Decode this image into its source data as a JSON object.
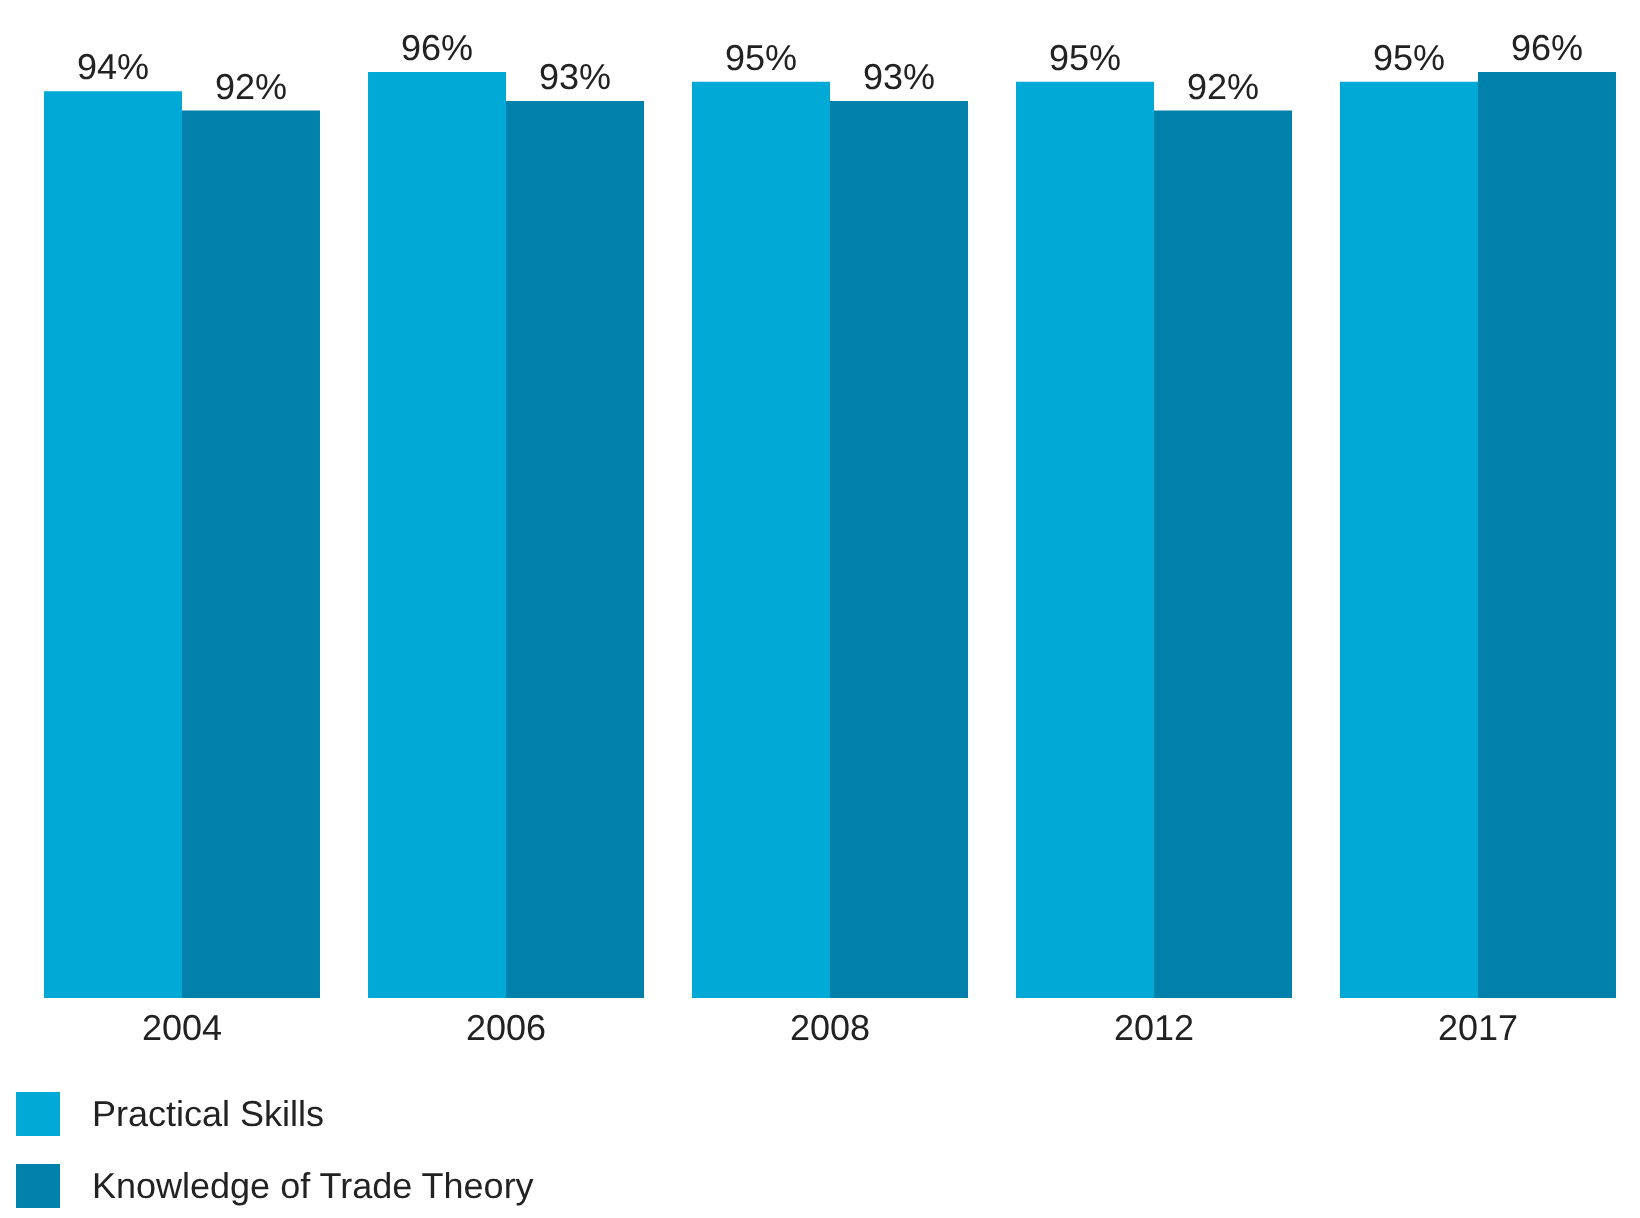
{
  "chart_data": {
    "type": "bar",
    "categories": [
      "2004",
      "2006",
      "2008",
      "2012",
      "2017"
    ],
    "series": [
      {
        "name": "Practical Skills",
        "color": "#00a9d6",
        "values": [
          94,
          96,
          95,
          95,
          95
        ],
        "value_labels": [
          "94%",
          "96%",
          "95%",
          "95%",
          "95%"
        ]
      },
      {
        "name": "Knowledge of Trade Theory",
        "color": "#0081ab",
        "values": [
          92,
          93,
          93,
          92,
          96
        ],
        "value_labels": [
          "92%",
          "93%",
          "93%",
          "92%",
          "96%"
        ]
      }
    ],
    "legend": "bottom left"
  }
}
